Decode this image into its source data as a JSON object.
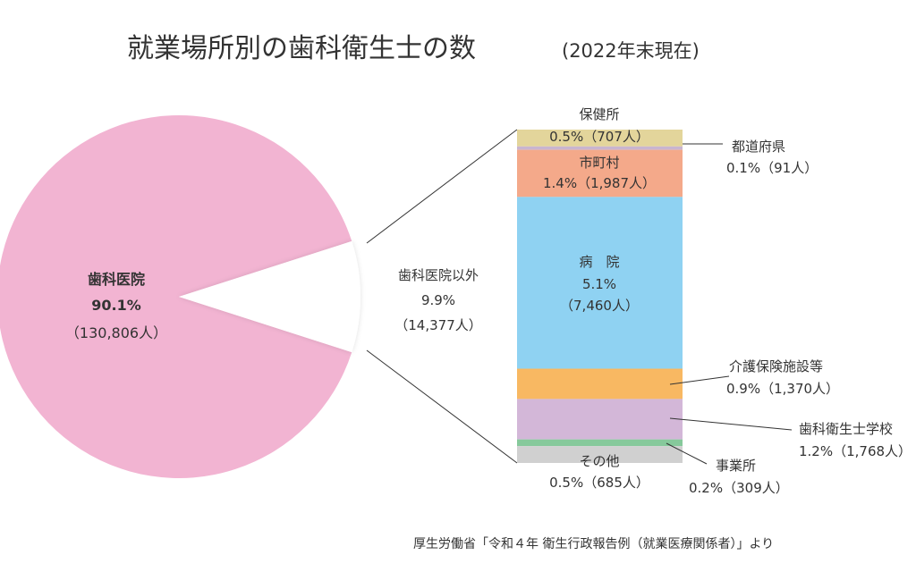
{
  "chart_data": {
    "type": "pie",
    "title": "就業場所別の歯科衛生士の数",
    "subtitle": "(2022年末現在)",
    "source": "厚生労働省「令和４年 衛生行政報告例（就業医療関係者）」より",
    "colors": {
      "dental_clinic": "#f2b4d2",
      "health_center": "#e3d59b",
      "municipality": "#f4a98a",
      "hospital": "#8fd2f2",
      "care_facility": "#f8b862",
      "training_school": "#d3b7d8",
      "business": "#86c99b",
      "other": "#d0d0d0",
      "prefecture": "#c9b5cf"
    },
    "pie": {
      "name": "歯科医院",
      "percent": 90.1,
      "count": 130806,
      "label_name": "歯科医院",
      "label_percent": "90.1%",
      "label_count": "（130,806人）"
    },
    "others_total": {
      "name_label": "歯科医院以外",
      "percent": 9.9,
      "count": 14377,
      "percent_label": "9.9%",
      "count_label": "（14,377人）"
    },
    "breakdown": [
      {
        "key": "health_center",
        "name": "保健所",
        "percent": 0.5,
        "count": 707,
        "text": "0.5%（707人）"
      },
      {
        "key": "prefecture",
        "name": "都道府県",
        "percent": 0.1,
        "count": 91,
        "text": "0.1%（91人）"
      },
      {
        "key": "municipality",
        "name": "市町村",
        "percent": 1.4,
        "count": 1987,
        "text": "1.4%（1,987人）"
      },
      {
        "key": "hospital",
        "name": "病　院",
        "percent": 5.1,
        "count": 7460,
        "text_percent": "5.1%",
        "text_count": "（7,460人）"
      },
      {
        "key": "care_facility",
        "name": "介護保険施設等",
        "percent": 0.9,
        "count": 1370,
        "text": "0.9%（1,370人）"
      },
      {
        "key": "training_school",
        "name": "歯科衛生士学校",
        "percent": 1.2,
        "count": 1768,
        "text": "1.2%（1,768人）"
      },
      {
        "key": "business",
        "name": "事業所",
        "percent": 0.2,
        "count": 309,
        "text": "0.2%（309人）"
      },
      {
        "key": "other",
        "name": "その他",
        "percent": 0.5,
        "count": 685,
        "text": "0.5%（685人）"
      }
    ]
  }
}
